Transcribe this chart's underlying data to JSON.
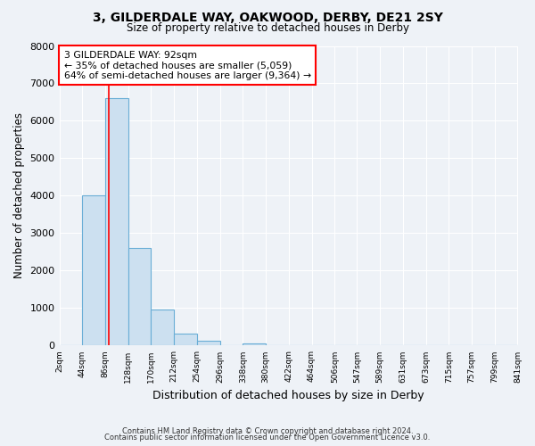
{
  "title": "3, GILDERDALE WAY, OAKWOOD, DERBY, DE21 2SY",
  "subtitle": "Size of property relative to detached houses in Derby",
  "xlabel": "Distribution of detached houses by size in Derby",
  "ylabel": "Number of detached properties",
  "bar_color": "#cce0f0",
  "bar_edge_color": "#6aaed6",
  "bin_labels": [
    "2sqm",
    "44sqm",
    "86sqm",
    "128sqm",
    "170sqm",
    "212sqm",
    "254sqm",
    "296sqm",
    "338sqm",
    "380sqm",
    "422sqm",
    "464sqm",
    "506sqm",
    "547sqm",
    "589sqm",
    "631sqm",
    "673sqm",
    "715sqm",
    "757sqm",
    "799sqm",
    "841sqm"
  ],
  "bin_edges": [
    2,
    44,
    86,
    128,
    170,
    212,
    254,
    296,
    338,
    380,
    422,
    464,
    506,
    547,
    589,
    631,
    673,
    715,
    757,
    799,
    841
  ],
  "bar_heights": [
    0,
    4000,
    6600,
    2600,
    960,
    320,
    130,
    0,
    50,
    0,
    0,
    0,
    0,
    0,
    0,
    0,
    0,
    0,
    0,
    0
  ],
  "ylim": [
    0,
    8000
  ],
  "yticks": [
    0,
    1000,
    2000,
    3000,
    4000,
    5000,
    6000,
    7000,
    8000
  ],
  "property_line_x": 92,
  "annotation_text": "3 GILDERDALE WAY: 92sqm\n← 35% of detached houses are smaller (5,059)\n64% of semi-detached houses are larger (9,364) →",
  "annotation_box_color": "white",
  "annotation_box_edge": "red",
  "footer_line1": "Contains HM Land Registry data © Crown copyright and database right 2024.",
  "footer_line2": "Contains public sector information licensed under the Open Government Licence v3.0.",
  "background_color": "#eef2f7",
  "grid_color": "white"
}
